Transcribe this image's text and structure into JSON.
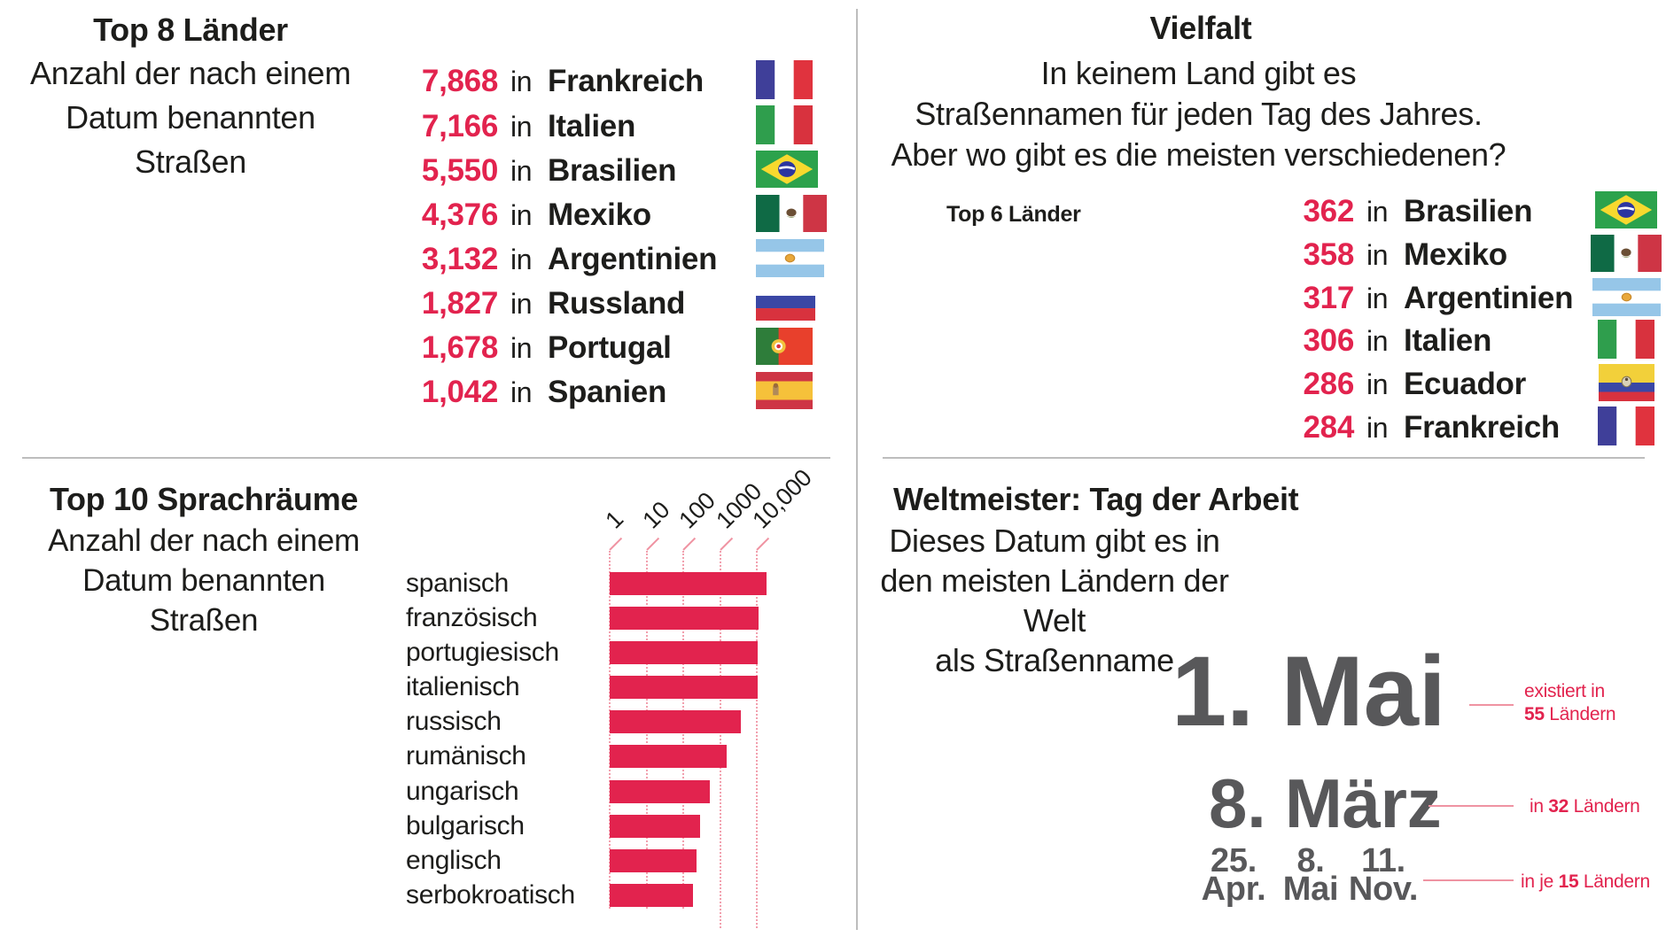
{
  "colors": {
    "accent_red": "#e2234e",
    "light_red_lines": "#ef93a2",
    "big_date_gray": "#58585a",
    "divider_gray": "#bdbdbd",
    "text_black": "#1d1d1b"
  },
  "panels": {
    "top8": {
      "title": "Top 8 Länder",
      "subtitle_lines": [
        "Anzahl der nach einem",
        "Datum benannten",
        "Straßen"
      ],
      "in_word": "in",
      "rows": [
        {
          "value": "7,868",
          "country": "Frankreich",
          "flag": "france"
        },
        {
          "value": "7,166",
          "country": "Italien",
          "flag": "italy"
        },
        {
          "value": "5,550",
          "country": "Brasilien",
          "flag": "brazil"
        },
        {
          "value": "4,376",
          "country": "Mexiko",
          "flag": "mexico"
        },
        {
          "value": "3,132",
          "country": "Argentinien",
          "flag": "argentina"
        },
        {
          "value": "1,827",
          "country": "Russland",
          "flag": "russia"
        },
        {
          "value": "1,678",
          "country": "Portugal",
          "flag": "portugal"
        },
        {
          "value": "1,042",
          "country": "Spanien",
          "flag": "spain"
        }
      ]
    },
    "vielfalt": {
      "title": "Vielfalt",
      "body_lines": [
        "In keinem Land gibt es",
        "Straßennamen für jeden Tag des Jahres.",
        "Aber wo gibt es die meisten verschiedenen?"
      ],
      "list_label": "Top 6 Länder",
      "in_word": "in",
      "rows": [
        {
          "value": "362",
          "country": "Brasilien",
          "flag": "brazil"
        },
        {
          "value": "358",
          "country": "Mexiko",
          "flag": "mexico"
        },
        {
          "value": "317",
          "country": "Argentinien",
          "flag": "argentina"
        },
        {
          "value": "306",
          "country": "Italien",
          "flag": "italy"
        },
        {
          "value": "286",
          "country": "Ecuador",
          "flag": "ecuador"
        },
        {
          "value": "284",
          "country": "Frankreich",
          "flag": "france"
        }
      ]
    },
    "sprachraeume": {
      "title": "Top 10 Sprachräume",
      "subtitle_lines": [
        "Anzahl der nach einem",
        "Datum benannten",
        "Straßen"
      ]
    },
    "weltmeister": {
      "title": "Weltmeister: Tag der Arbeit",
      "body_lines": [
        "Dieses Datum gibt es in",
        "den meisten Ländern der Welt",
        "als Straßenname"
      ],
      "entries": [
        {
          "date": "1. Mai",
          "note_line1": "existiert in",
          "note_prefix": "",
          "note_bold": "55",
          "note_rest": " Ländern"
        },
        {
          "date": "8. März",
          "note_prefix": "in ",
          "note_bold": "32",
          "note_rest": " Ländern"
        },
        {
          "dates": [
            "25.",
            "Apr.",
            "8.",
            "Mai",
            "11.",
            "Nov."
          ],
          "note_prefix": "in je ",
          "note_bold": "15",
          "note_rest": " Ländern"
        }
      ]
    }
  },
  "chart_data": {
    "type": "bar",
    "orientation": "horizontal",
    "x_scale": "log",
    "title": "Top 10 Sprachräume",
    "subtitle": "Anzahl der nach einem Datum benannten Straßen",
    "categories": [
      "spanisch",
      "französisch",
      "portugiesisch",
      "italienisch",
      "russisch",
      "rumänisch",
      "ungarisch",
      "bulgarisch",
      "englisch",
      "serbokroatisch"
    ],
    "values": [
      18000,
      11000,
      10800,
      10500,
      3700,
      1500,
      530,
      290,
      230,
      185
    ],
    "ticks": [
      1,
      10,
      100,
      1000,
      10000
    ],
    "tick_labels": [
      "1",
      "10",
      "100",
      "1000",
      "10,000"
    ],
    "xlim": [
      1,
      20000
    ],
    "grid": "dotted-vertical",
    "bar_color": "#e2234e",
    "legend": "none"
  }
}
